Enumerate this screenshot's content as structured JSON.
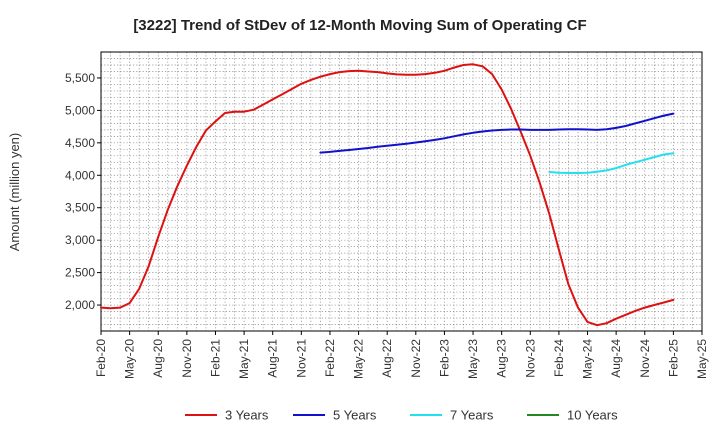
{
  "chart_data": {
    "type": "line",
    "title": "[3222]  Trend of StDev of 12-Month Moving Sum of Operating CF",
    "xlabel": "",
    "ylabel": "Amount (million yen)",
    "ylim": [
      1600,
      5900
    ],
    "yticks": [
      2000,
      2500,
      3000,
      3500,
      4000,
      4500,
      5000,
      5500
    ],
    "ytick_labels": [
      "2,000",
      "2,500",
      "3,000",
      "3,500",
      "4,000",
      "4,500",
      "5,000",
      "5,500"
    ],
    "xlim": [
      "2020-02",
      "2025-05"
    ],
    "xticks": [
      "2020-02",
      "2020-05",
      "2020-08",
      "2020-11",
      "2021-02",
      "2021-05",
      "2021-08",
      "2021-11",
      "2022-02",
      "2022-05",
      "2022-08",
      "2022-11",
      "2023-02",
      "2023-05",
      "2023-08",
      "2023-11",
      "2024-02",
      "2024-05",
      "2024-08",
      "2024-11",
      "2025-02",
      "2025-05"
    ],
    "xtick_labels": [
      "Feb-20",
      "May-20",
      "Aug-20",
      "Nov-20",
      "Feb-21",
      "May-21",
      "Aug-21",
      "Nov-21",
      "Feb-22",
      "May-22",
      "Aug-22",
      "Nov-22",
      "Feb-23",
      "May-23",
      "Aug-23",
      "Nov-23",
      "Feb-24",
      "May-24",
      "Aug-24",
      "Nov-24",
      "Feb-25",
      "May-25"
    ],
    "grid": true,
    "legend_position": "bottom",
    "series": [
      {
        "name": "3 Years",
        "color": "#dd1111",
        "x": [
          "2020-02",
          "2020-03",
          "2020-04",
          "2020-05",
          "2020-06",
          "2020-07",
          "2020-08",
          "2020-09",
          "2020-10",
          "2020-11",
          "2020-12",
          "2021-01",
          "2021-02",
          "2021-03",
          "2021-04",
          "2021-05",
          "2021-06",
          "2021-07",
          "2021-08",
          "2021-09",
          "2021-10",
          "2021-11",
          "2021-12",
          "2022-01",
          "2022-02",
          "2022-03",
          "2022-04",
          "2022-05",
          "2022-06",
          "2022-07",
          "2022-08",
          "2022-09",
          "2022-10",
          "2022-11",
          "2022-12",
          "2023-01",
          "2023-02",
          "2023-03",
          "2023-04",
          "2023-05",
          "2023-06",
          "2023-07",
          "2023-08",
          "2023-09",
          "2023-10",
          "2023-11",
          "2023-12",
          "2024-01",
          "2024-02",
          "2024-03",
          "2024-04",
          "2024-05",
          "2024-06",
          "2024-07",
          "2024-08",
          "2024-09",
          "2024-10",
          "2024-11",
          "2024-12",
          "2025-01",
          "2025-02"
        ],
        "values": [
          1960,
          1950,
          1960,
          2030,
          2250,
          2600,
          3050,
          3470,
          3830,
          4150,
          4440,
          4690,
          4830,
          4960,
          4980,
          4980,
          5010,
          5090,
          5170,
          5250,
          5330,
          5410,
          5470,
          5520,
          5560,
          5590,
          5605,
          5610,
          5600,
          5590,
          5570,
          5555,
          5550,
          5550,
          5560,
          5580,
          5610,
          5660,
          5700,
          5710,
          5680,
          5560,
          5320,
          5020,
          4670,
          4300,
          3880,
          3400,
          2850,
          2320,
          1960,
          1740,
          1690,
          1720,
          1790,
          1850,
          1910,
          1960,
          2000,
          2040,
          2080
        ]
      },
      {
        "name": "5 Years",
        "color": "#1111cc",
        "x": [
          "2022-01",
          "2022-02",
          "2022-03",
          "2022-04",
          "2022-05",
          "2022-06",
          "2022-07",
          "2022-08",
          "2022-09",
          "2022-10",
          "2022-11",
          "2022-12",
          "2023-01",
          "2023-02",
          "2023-03",
          "2023-04",
          "2023-05",
          "2023-06",
          "2023-07",
          "2023-08",
          "2023-09",
          "2023-10",
          "2023-11",
          "2023-12",
          "2024-01",
          "2024-02",
          "2024-03",
          "2024-04",
          "2024-05",
          "2024-06",
          "2024-07",
          "2024-08",
          "2024-09",
          "2024-10",
          "2024-11",
          "2024-12",
          "2025-01",
          "2025-02"
        ],
        "values": [
          4350,
          4360,
          4375,
          4390,
          4405,
          4420,
          4440,
          4455,
          4470,
          4485,
          4505,
          4525,
          4545,
          4570,
          4600,
          4630,
          4655,
          4675,
          4690,
          4700,
          4705,
          4705,
          4700,
          4700,
          4700,
          4705,
          4710,
          4710,
          4705,
          4700,
          4710,
          4730,
          4760,
          4800,
          4840,
          4880,
          4920,
          4950
        ]
      },
      {
        "name": "7 Years",
        "color": "#22e0ee",
        "x": [
          "2024-01",
          "2024-02",
          "2024-03",
          "2024-04",
          "2024-05",
          "2024-06",
          "2024-07",
          "2024-08",
          "2024-09",
          "2024-10",
          "2024-11",
          "2024-12",
          "2025-01",
          "2025-02"
        ],
        "values": [
          4050,
          4040,
          4035,
          4035,
          4040,
          4055,
          4075,
          4110,
          4160,
          4200,
          4240,
          4280,
          4320,
          4340
        ]
      },
      {
        "name": "10 Years",
        "color": "#228822",
        "x": [],
        "values": []
      }
    ]
  }
}
